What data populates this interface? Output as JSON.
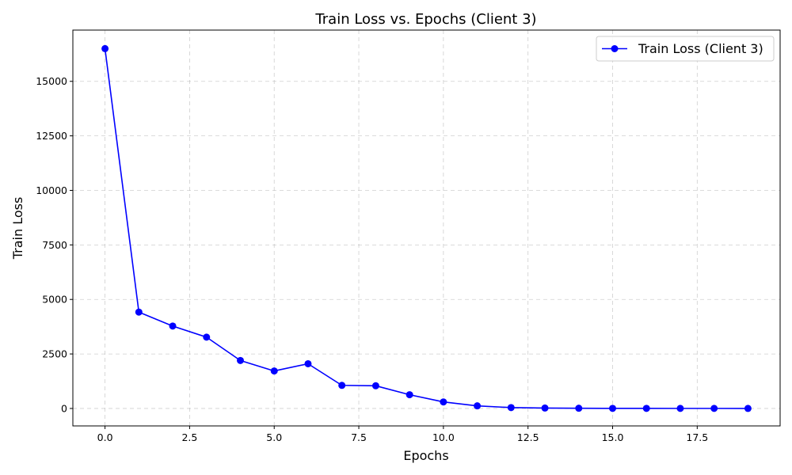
{
  "chart_data": {
    "type": "line",
    "title": "Train Loss vs. Epochs (Client 3)",
    "xlabel": "Epochs",
    "ylabel": "Train Loss",
    "xlim": [
      -0.95,
      19.95
    ],
    "ylim": [
      -800,
      17350
    ],
    "x_ticks": [
      0.0,
      2.5,
      5.0,
      7.5,
      10.0,
      12.5,
      15.0,
      17.5
    ],
    "x_tick_labels": [
      "0.0",
      "2.5",
      "5.0",
      "7.5",
      "10.0",
      "12.5",
      "15.0",
      "17.5"
    ],
    "y_ticks": [
      0,
      2500,
      5000,
      7500,
      10000,
      12500,
      15000
    ],
    "y_tick_labels": [
      "0",
      "2500",
      "5000",
      "7500",
      "10000",
      "12500",
      "15000"
    ],
    "grid": true,
    "legend_position": "top-right",
    "series": [
      {
        "name": "Train Loss (Client 3)",
        "color": "#0000ff",
        "marker": "circle",
        "x": [
          0,
          1,
          2,
          3,
          4,
          5,
          6,
          7,
          8,
          9,
          10,
          11,
          12,
          13,
          14,
          15,
          16,
          17,
          18,
          19
        ],
        "y": [
          16500,
          4420,
          3780,
          3270,
          2200,
          1720,
          2050,
          1060,
          1040,
          630,
          300,
          120,
          40,
          20,
          10,
          5,
          5,
          3,
          3,
          2
        ]
      }
    ]
  }
}
